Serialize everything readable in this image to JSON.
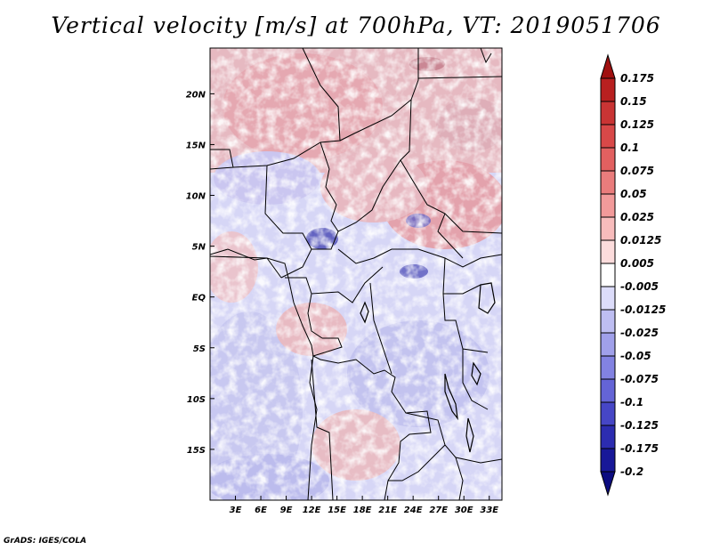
{
  "title": "Vertical velocity [m/s] at 700hPa, VT: 2019051706",
  "credit": "GrADS: IGES/COLA",
  "map": {
    "lat_labels": [
      "20N",
      "15N",
      "10N",
      "5N",
      "EQ",
      "5S",
      "10S",
      "15S"
    ],
    "lat_values": [
      20,
      15,
      10,
      5,
      0,
      -5,
      -10,
      -15
    ],
    "lon_labels": [
      "3E",
      "6E",
      "9E",
      "12E",
      "15E",
      "18E",
      "21E",
      "24E",
      "27E",
      "30E",
      "33E"
    ],
    "lon_values": [
      3,
      6,
      9,
      12,
      15,
      18,
      21,
      24,
      27,
      30,
      33
    ],
    "lat_range": [
      -20,
      24.5
    ],
    "lon_range": [
      0,
      34.5
    ]
  },
  "colorbar": {
    "labels": [
      "0.175",
      "0.15",
      "0.125",
      "0.1",
      "0.075",
      "0.05",
      "0.025",
      "0.0125",
      "0.005",
      "-0.005",
      "-0.0125",
      "-0.025",
      "-0.05",
      "-0.075",
      "-0.1",
      "-0.125",
      "-0.175",
      "-0.2"
    ],
    "colors": [
      "#a01010",
      "#b82020",
      "#c93434",
      "#d84848",
      "#e26060",
      "#ea7c7c",
      "#f29a9a",
      "#f8bcbc",
      "#fcdcdc",
      "#ffffff",
      "#dcdcfa",
      "#bebef2",
      "#a0a0ea",
      "#8282e2",
      "#6464d6",
      "#4646c6",
      "#2c2cb0",
      "#181898",
      "#0c0c80"
    ],
    "top_arrow_color": "#a01010",
    "bottom_arrow_color": "#0c0c80"
  }
}
